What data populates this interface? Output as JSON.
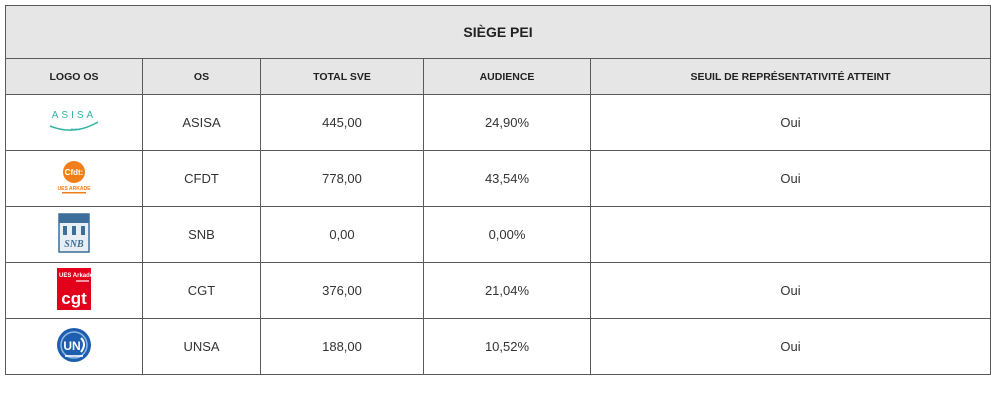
{
  "table": {
    "title": "SIÈGE PEI",
    "headers": [
      "LOGO OS",
      "OS",
      "TOTAL SVE",
      "AUDIENCE",
      "SEUIL DE REPRÉSENTATIVITÉ ATTEINT"
    ],
    "rows": [
      {
        "logo": "asisa-logo",
        "logo_text": "A S I S A",
        "os": "ASISA",
        "total_sve": "445,00",
        "audience": "24,90%",
        "seuil": "Oui"
      },
      {
        "logo": "cfdt-logo",
        "logo_text": "Cfdt: UES ARKADE",
        "os": "CFDT",
        "total_sve": "778,00",
        "audience": "43,54%",
        "seuil": "Oui"
      },
      {
        "logo": "snb-logo",
        "logo_text": "SNB",
        "os": "SNB",
        "total_sve": "0,00",
        "audience": "0,00%",
        "seuil": ""
      },
      {
        "logo": "cgt-logo",
        "logo_text": "UES Arkade cgt",
        "os": "CGT",
        "total_sve": "376,00",
        "audience": "21,04%",
        "seuil": "Oui"
      },
      {
        "logo": "unsa-logo",
        "logo_text": "UNSA",
        "os": "UNSA",
        "total_sve": "188,00",
        "audience": "10,52%",
        "seuil": "Oui"
      }
    ]
  },
  "colors": {
    "header_bg": "#e6e6e6",
    "border": "#5a5a5a",
    "asisa": "#2fb3a4",
    "cfdt": "#f07f1a",
    "snb": "#3b6f9a",
    "cgt": "#e2001a",
    "unsa": "#1d5fae"
  }
}
